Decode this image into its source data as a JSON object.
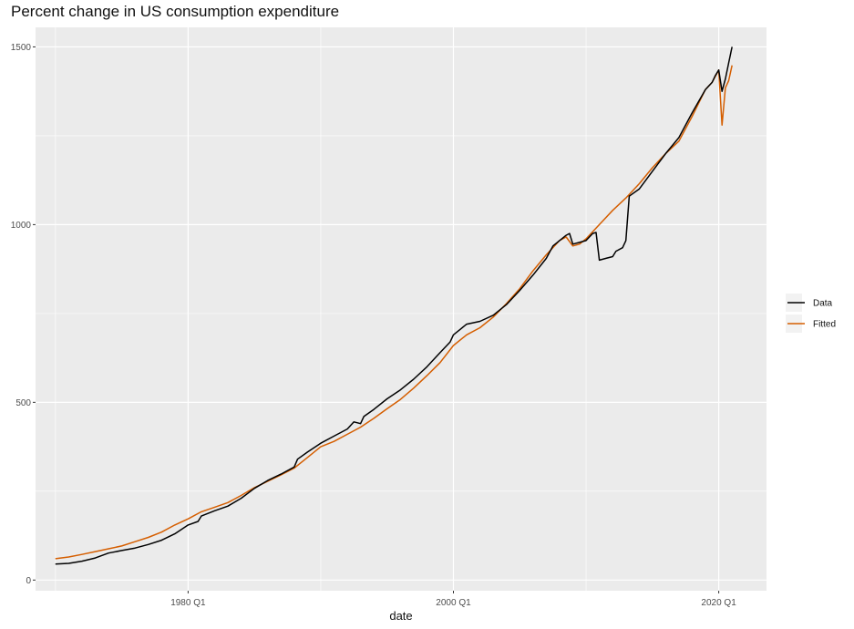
{
  "chart_data": {
    "type": "line",
    "title": "Percent change in US consumption expenditure",
    "xlabel": "date",
    "ylabel": "",
    "xlim": [
      1968.5,
      2023.6
    ],
    "ylim": [
      -30,
      1555
    ],
    "x_ticks": [
      {
        "x": 1980.0,
        "label": "1980 Q1"
      },
      {
        "x": 2000.0,
        "label": "2000 Q1"
      },
      {
        "x": 2020.0,
        "label": "2020 Q1"
      }
    ],
    "x_minor": [
      1970.0,
      1990.0,
      2010.0
    ],
    "y_ticks": [
      0,
      500,
      1000,
      1500
    ],
    "y_minor": [
      250,
      750,
      1250
    ],
    "grid": true,
    "legend_position": "right",
    "series": [
      {
        "name": "Data",
        "color": "#000000",
        "points": [
          [
            1970.0,
            45
          ],
          [
            1971.0,
            47
          ],
          [
            1972.0,
            53
          ],
          [
            1973.0,
            62
          ],
          [
            1974.0,
            76
          ],
          [
            1975.0,
            83
          ],
          [
            1976.0,
            90
          ],
          [
            1977.0,
            100
          ],
          [
            1978.0,
            112
          ],
          [
            1979.0,
            130
          ],
          [
            1980.0,
            155
          ],
          [
            1980.75,
            165
          ],
          [
            1981.0,
            180
          ],
          [
            1982.0,
            195
          ],
          [
            1983.0,
            208
          ],
          [
            1984.0,
            230
          ],
          [
            1985.0,
            258
          ],
          [
            1986.0,
            280
          ],
          [
            1987.0,
            298
          ],
          [
            1988.0,
            318
          ],
          [
            1988.25,
            340
          ],
          [
            1989.0,
            360
          ],
          [
            1990.0,
            385
          ],
          [
            1991.0,
            405
          ],
          [
            1992.0,
            425
          ],
          [
            1992.5,
            445
          ],
          [
            1993.0,
            440
          ],
          [
            1993.25,
            460
          ],
          [
            1994.0,
            480
          ],
          [
            1995.0,
            510
          ],
          [
            1996.0,
            535
          ],
          [
            1997.0,
            565
          ],
          [
            1998.0,
            600
          ],
          [
            1999.0,
            640
          ],
          [
            1999.75,
            670
          ],
          [
            2000.0,
            690
          ],
          [
            2000.5,
            705
          ],
          [
            2001.0,
            720
          ],
          [
            2002.0,
            728
          ],
          [
            2003.0,
            745
          ],
          [
            2004.0,
            775
          ],
          [
            2005.0,
            815
          ],
          [
            2006.0,
            858
          ],
          [
            2007.0,
            905
          ],
          [
            2007.5,
            940
          ],
          [
            2008.0,
            955
          ],
          [
            2008.5,
            970
          ],
          [
            2008.75,
            975
          ],
          [
            2009.0,
            945
          ],
          [
            2009.5,
            950
          ],
          [
            2010.0,
            955
          ],
          [
            2010.5,
            975
          ],
          [
            2010.75,
            978
          ],
          [
            2011.0,
            900
          ],
          [
            2011.5,
            905
          ],
          [
            2012.0,
            910
          ],
          [
            2012.25,
            925
          ],
          [
            2012.75,
            935
          ],
          [
            2013.0,
            955
          ],
          [
            2013.25,
            1080
          ],
          [
            2014.0,
            1100
          ],
          [
            2015.0,
            1150
          ],
          [
            2016.0,
            1200
          ],
          [
            2017.0,
            1245
          ],
          [
            2018.0,
            1315
          ],
          [
            2019.0,
            1380
          ],
          [
            2019.5,
            1400
          ],
          [
            2019.75,
            1420
          ],
          [
            2020.0,
            1435
          ],
          [
            2020.25,
            1375
          ],
          [
            2020.5,
            1410
          ],
          [
            2020.75,
            1455
          ],
          [
            2021.0,
            1500
          ]
        ]
      },
      {
        "name": "Fitted",
        "color": "#D55E00",
        "points": [
          [
            1970.0,
            60
          ],
          [
            1971.0,
            65
          ],
          [
            1972.0,
            72
          ],
          [
            1973.0,
            80
          ],
          [
            1974.0,
            88
          ],
          [
            1975.0,
            96
          ],
          [
            1976.0,
            108
          ],
          [
            1977.0,
            120
          ],
          [
            1978.0,
            135
          ],
          [
            1979.0,
            155
          ],
          [
            1980.0,
            172
          ],
          [
            1981.0,
            192
          ],
          [
            1982.0,
            205
          ],
          [
            1983.0,
            218
          ],
          [
            1984.0,
            238
          ],
          [
            1985.0,
            260
          ],
          [
            1986.0,
            278
          ],
          [
            1987.0,
            296
          ],
          [
            1988.0,
            315
          ],
          [
            1989.0,
            345
          ],
          [
            1990.0,
            375
          ],
          [
            1991.0,
            390
          ],
          [
            1992.0,
            410
          ],
          [
            1993.0,
            430
          ],
          [
            1994.0,
            455
          ],
          [
            1995.0,
            482
          ],
          [
            1996.0,
            508
          ],
          [
            1997.0,
            540
          ],
          [
            1998.0,
            575
          ],
          [
            1999.0,
            612
          ],
          [
            2000.0,
            660
          ],
          [
            2001.0,
            690
          ],
          [
            2002.0,
            710
          ],
          [
            2003.0,
            740
          ],
          [
            2004.0,
            778
          ],
          [
            2005.0,
            820
          ],
          [
            2006.0,
            870
          ],
          [
            2007.0,
            915
          ],
          [
            2008.0,
            955
          ],
          [
            2008.5,
            965
          ],
          [
            2009.0,
            940
          ],
          [
            2009.5,
            945
          ],
          [
            2010.0,
            960
          ],
          [
            2011.0,
            1000
          ],
          [
            2012.0,
            1040
          ],
          [
            2013.0,
            1075
          ],
          [
            2014.0,
            1115
          ],
          [
            2015.0,
            1160
          ],
          [
            2016.0,
            1200
          ],
          [
            2017.0,
            1235
          ],
          [
            2018.0,
            1305
          ],
          [
            2019.0,
            1380
          ],
          [
            2019.5,
            1400
          ],
          [
            2020.0,
            1435
          ],
          [
            2020.25,
            1280
          ],
          [
            2020.5,
            1385
          ],
          [
            2020.75,
            1405
          ],
          [
            2021.0,
            1448
          ]
        ]
      }
    ]
  }
}
